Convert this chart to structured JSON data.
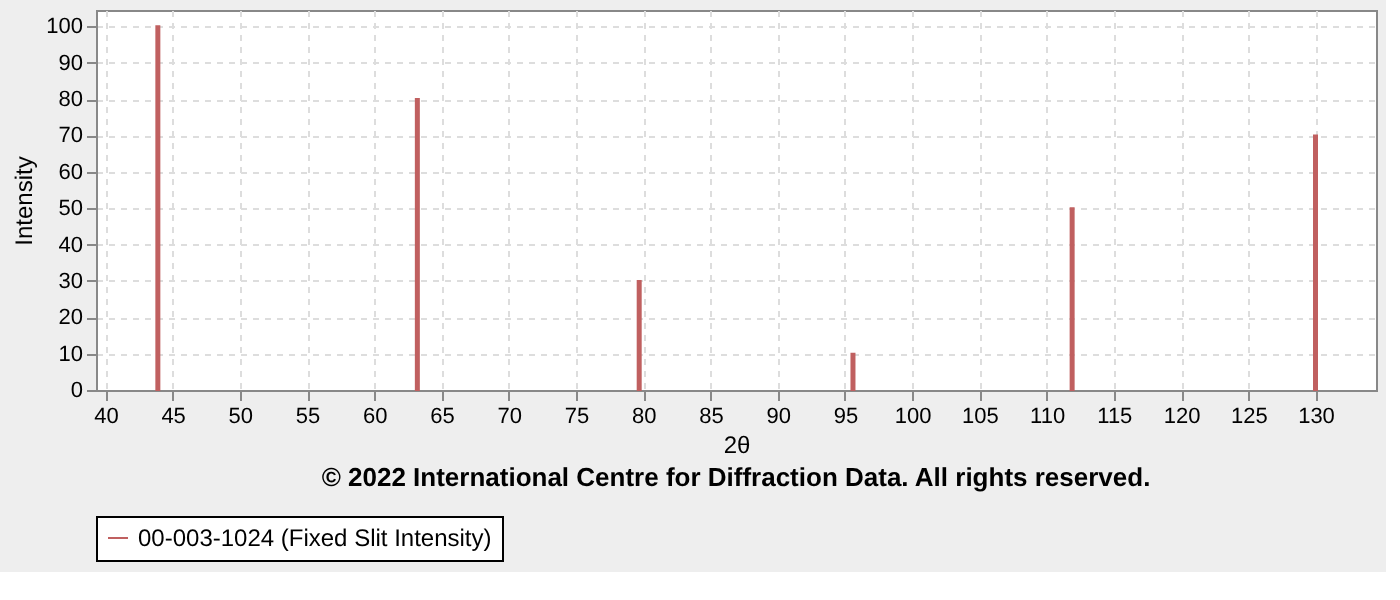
{
  "chart_data": {
    "type": "bar",
    "xlabel": "2θ",
    "ylabel": "Intensity",
    "x": [
      43.9,
      63.2,
      79.7,
      95.6,
      111.9,
      130.0
    ],
    "series": [
      {
        "name": "00-003-1024 (Fixed Slit Intensity)",
        "color": "#c06060",
        "values": [
          100,
          80,
          30,
          10,
          50,
          70
        ]
      }
    ],
    "xlim": [
      39.3,
      134.5
    ],
    "xticks": [
      40,
      45,
      50,
      55,
      60,
      65,
      70,
      75,
      80,
      85,
      90,
      95,
      100,
      105,
      110,
      115,
      120,
      125,
      130
    ],
    "ylim": [
      0,
      104.5
    ],
    "yticks": [
      0,
      10,
      20,
      30,
      40,
      50,
      60,
      70,
      80,
      90,
      100
    ],
    "grid": true,
    "legend": "bottom",
    "annotations": [
      "© 2022 International Centre for Diffraction Data. All rights reserved."
    ]
  }
}
